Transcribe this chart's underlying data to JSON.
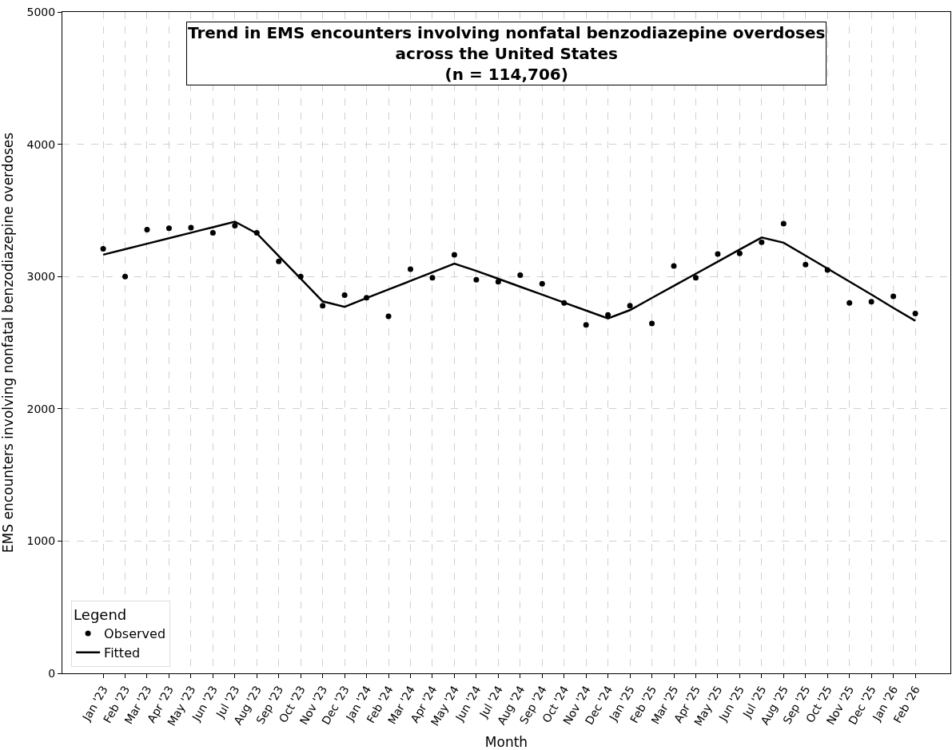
{
  "chart_data": {
    "type": "scatter",
    "title": "Trend in EMS encounters involving nonfatal benzodiazepine overdoses\nacross the United States\n(n = 114,706)",
    "xlabel": "Month",
    "ylabel": "EMS encounters involving nonfatal benzodiazepine overdoses",
    "legend_title": "Legend",
    "categories": [
      "Jan '23",
      "Feb '23",
      "Mar '23",
      "Apr '23",
      "May '23",
      "Jun '23",
      "Jul '23",
      "Aug '23",
      "Sep '23",
      "Oct '23",
      "Nov '23",
      "Dec '23",
      "Jan '24",
      "Feb '24",
      "Mar '24",
      "Apr '24",
      "May '24",
      "Jun '24",
      "Jul '24",
      "Aug '24",
      "Sep '24",
      "Oct '24",
      "Nov '24",
      "Dec '24",
      "Jan '25",
      "Feb '25",
      "Mar '25",
      "Apr '25",
      "May '25",
      "Jun '25",
      "Jul '25",
      "Aug '25",
      "Sep '25",
      "Oct '25",
      "Nov '25",
      "Dec '25",
      "Jan '26",
      "Feb '26"
    ],
    "series": [
      {
        "name": "Observed",
        "marker": "circle",
        "color": "#000000",
        "values": [
          3210,
          3000,
          3355,
          3365,
          3370,
          3330,
          3385,
          3330,
          3115,
          3000,
          2780,
          2860,
          2840,
          2700,
          3055,
          2990,
          3165,
          2975,
          2960,
          3010,
          2945,
          2800,
          2635,
          2710,
          2780,
          2645,
          3080,
          2990,
          3170,
          3175,
          3260,
          3400,
          3090,
          3050,
          2800,
          2810,
          2850,
          2720
        ]
      },
      {
        "name": "Fitted",
        "type": "line",
        "marker": "none",
        "line_style": "solid",
        "color": "#000000",
        "values": [
          3165,
          3207,
          3248,
          3290,
          3331,
          3373,
          3415,
          3326,
          3155,
          2984,
          2812,
          2771,
          2837,
          2902,
          2967,
          3032,
          3097,
          3043,
          2983,
          2923,
          2863,
          2803,
          2743,
          2683,
          2746,
          2838,
          2929,
          3021,
          3112,
          3204,
          3295,
          3256,
          3158,
          3060,
          2962,
          2864,
          2763,
          2665
        ]
      }
    ],
    "ylim": [
      0,
      5000
    ],
    "yticks": [
      0,
      1000,
      2000,
      3000,
      4000,
      5000
    ],
    "grid": true,
    "legend": "bottom left"
  }
}
